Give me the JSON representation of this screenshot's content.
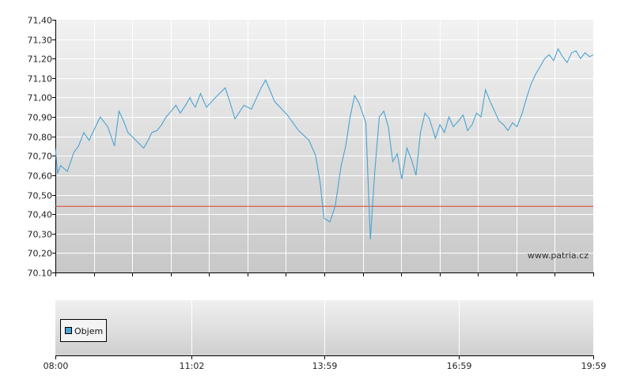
{
  "watermark": "www.patria.cz",
  "legend": {
    "label": "Objem",
    "color": "#4aa3d3"
  },
  "colors": {
    "price_line": "#4aa3d3",
    "reference_line": "#e0412b",
    "grid": "#ffffff"
  },
  "chart_data": [
    {
      "type": "line",
      "title": "",
      "xlabel": "",
      "ylabel": "",
      "ylim": [
        70.1,
        71.4
      ],
      "yticks": [
        "70.10",
        "70,20",
        "70,30",
        "70,40",
        "70,50",
        "70,60",
        "70,70",
        "70,80",
        "70,90",
        "71,00",
        "71,10",
        "71,20",
        "71,30",
        "71,40"
      ],
      "xlim": [
        "08:00",
        "19:59"
      ],
      "grid": true,
      "reference_line": 70.44,
      "series": [
        {
          "x": [
            "08:00",
            "08:03",
            "08:07",
            "08:16",
            "08:25",
            "08:31",
            "08:38",
            "08:45",
            "09:00",
            "09:10",
            "09:19",
            "09:25",
            "09:31",
            "09:37",
            "09:45",
            "09:58",
            "10:04",
            "10:09",
            "10:16",
            "10:22",
            "10:28",
            "10:37",
            "10:41",
            "10:47",
            "10:54",
            "11:00",
            "11:02",
            "11:07",
            "11:14",
            "11:22",
            "11:34",
            "11:47",
            "11:53",
            "12:00",
            "12:12",
            "12:22",
            "12:35",
            "12:41",
            "12:53",
            "13:10",
            "13:25",
            "13:39",
            "13:48",
            "13:54",
            "13:59",
            "14:07",
            "14:14",
            "14:22",
            "14:28",
            "14:34",
            "14:40",
            "14:46",
            "14:55",
            "15:01",
            "15:07",
            "15:13",
            "15:19",
            "15:25",
            "15:31",
            "15:37",
            "15:43",
            "15:50",
            "15:56",
            "16:02",
            "16:08",
            "16:14",
            "16:20",
            "16:28",
            "16:34",
            "16:40",
            "16:46",
            "16:52",
            "16:59",
            "17:05",
            "17:11",
            "17:17",
            "17:23",
            "17:29",
            "17:35",
            "17:41",
            "17:47",
            "17:53",
            "17:59",
            "18:05",
            "18:11",
            "18:17",
            "18:24",
            "18:30",
            "18:36",
            "18:42",
            "18:48",
            "18:54",
            "19:00",
            "19:06",
            "19:12",
            "19:18",
            "19:24",
            "19:30",
            "19:36",
            "19:42",
            "19:48",
            "19:54",
            "19:59"
          ],
          "y": [
            70.74,
            70.61,
            70.65,
            70.62,
            70.72,
            70.75,
            70.82,
            70.78,
            70.9,
            70.85,
            70.75,
            70.93,
            70.88,
            70.82,
            70.79,
            70.74,
            70.78,
            70.82,
            70.83,
            70.86,
            70.9,
            70.94,
            70.96,
            70.92,
            70.96,
            71.0,
            70.98,
            70.95,
            71.02,
            70.95,
            71.0,
            71.05,
            70.98,
            70.89,
            70.96,
            70.94,
            71.05,
            71.09,
            70.98,
            70.91,
            70.83,
            70.78,
            70.7,
            70.56,
            70.38,
            70.36,
            70.44,
            70.65,
            70.75,
            70.9,
            71.01,
            70.97,
            70.87,
            70.27,
            70.62,
            70.9,
            70.93,
            70.85,
            70.67,
            70.71,
            70.58,
            70.74,
            70.68,
            70.6,
            70.82,
            70.92,
            70.89,
            70.79,
            70.86,
            70.82,
            70.9,
            70.85,
            70.88,
            70.91,
            70.83,
            70.86,
            70.92,
            70.9,
            71.04,
            70.98,
            70.93,
            70.88,
            70.86,
            70.83,
            70.87,
            70.85,
            70.92,
            71.0,
            71.07,
            71.12,
            71.16,
            71.2,
            71.22,
            71.19,
            71.25,
            71.21,
            71.18,
            71.23,
            71.24,
            71.2,
            71.23,
            71.21,
            71.22
          ]
        }
      ]
    },
    {
      "type": "bar",
      "title": "",
      "xlabel": "",
      "ylabel": "",
      "xticks": [
        "08:00",
        "11:02",
        "13:59",
        "16:59",
        "19:59"
      ],
      "series": [
        {
          "name": "Objem",
          "values": []
        }
      ]
    }
  ]
}
